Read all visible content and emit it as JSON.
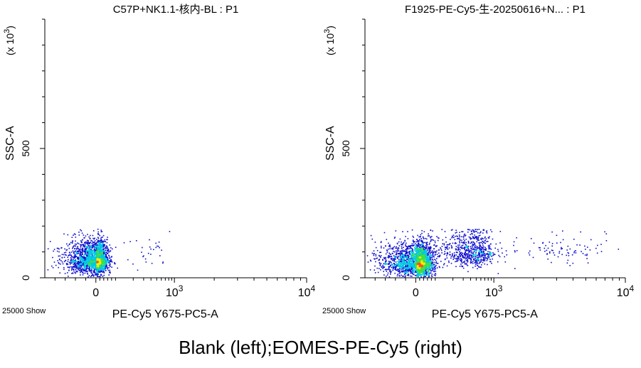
{
  "caption": "Blank (left);EOMES-PE-Cy5 (right)",
  "colors": {
    "density_low": "#1010d0",
    "density_mid": "#00c8e0",
    "density_mid2": "#40e040",
    "density_high": "#f0f000",
    "density_peak": "#ff5020",
    "axis": "#000000"
  },
  "chart_data": [
    {
      "type": "scatter",
      "title": "C57P+NK1.1-核内-BL : P1",
      "xlabel": "PE-Cy5 Y675-PC5-A",
      "ylabel": "SSC-A",
      "y_scale_note": "(x 10",
      "y_scale_exp": "3",
      "y_scale_close": ")",
      "event_note": "25000 Show",
      "xscale": "biexponential",
      "xlim": [
        -100,
        10000
      ],
      "ylim": [
        0,
        1000
      ],
      "xticks": [
        {
          "value": 0,
          "base": "0",
          "exp": ""
        },
        {
          "value": 1000,
          "base": "10",
          "exp": "3"
        },
        {
          "value": 10000,
          "base": "10",
          "exp": "4"
        }
      ],
      "yticks": [
        {
          "value": 0,
          "label": "0"
        },
        {
          "value": 500,
          "label": "500"
        }
      ],
      "populations": [
        {
          "name_hidden": "main",
          "x_center": 0,
          "x_spread": 28,
          "y_center": 70,
          "y_spread": 40,
          "y_max": 190,
          "count": 2200
        },
        {
          "name_hidden": "tail",
          "x_center": 300,
          "x_spread": 250,
          "y_center": 90,
          "y_spread": 45,
          "y_max": 190,
          "count": 40
        }
      ]
    },
    {
      "type": "scatter",
      "title": "F1925-PE-Cy5-生-20250616+N... : P1",
      "xlabel": "PE-Cy5 Y675-PC5-A",
      "ylabel": "SSC-A",
      "y_scale_note": "(x 10",
      "y_scale_exp": "3",
      "y_scale_close": ")",
      "event_note": "25000 Show",
      "xscale": "biexponential",
      "xlim": [
        -100,
        10000
      ],
      "ylim": [
        0,
        1000
      ],
      "xticks": [
        {
          "value": 0,
          "base": "0",
          "exp": ""
        },
        {
          "value": 1000,
          "base": "10",
          "exp": "3"
        },
        {
          "value": 10000,
          "base": "10",
          "exp": "4"
        }
      ],
      "yticks": [
        {
          "value": 0,
          "label": "0"
        },
        {
          "value": 500,
          "label": "500"
        }
      ],
      "populations": [
        {
          "name_hidden": "main",
          "x_center": 10,
          "x_spread": 35,
          "y_center": 60,
          "y_spread": 40,
          "y_max": 190,
          "count": 2200
        },
        {
          "name_hidden": "positive",
          "x_center": 300,
          "x_spread": 300,
          "y_center": 100,
          "y_spread": 45,
          "y_max": 190,
          "count": 900
        },
        {
          "name_hidden": "far",
          "x_center": 2500,
          "x_spread": 2000,
          "y_center": 110,
          "y_spread": 40,
          "y_max": 190,
          "count": 120
        }
      ]
    }
  ]
}
